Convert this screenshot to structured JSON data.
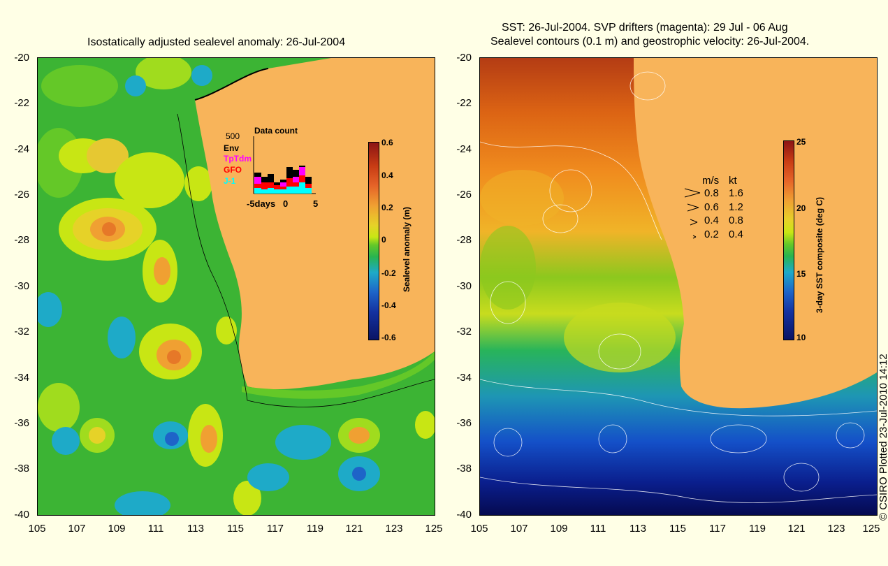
{
  "left_panel": {
    "title": "Isostatically adjusted sealevel anomaly: 26-Jul-2004",
    "y_ticks": [
      "-20",
      "-22",
      "-24",
      "-26",
      "-28",
      "-30",
      "-32",
      "-34",
      "-36",
      "-38",
      "-40"
    ],
    "x_ticks": [
      "105",
      "107",
      "109",
      "111",
      "113",
      "115",
      "117",
      "119",
      "121",
      "123",
      "125"
    ],
    "colorbar": {
      "title": "Sealevel anomaly (m)",
      "labels": [
        "0.6",
        "0.4",
        "0.2",
        "0",
        "-0.2",
        "-0.4",
        "-0.6"
      ]
    },
    "data_count": {
      "title": "Data count",
      "max_label": "500",
      "legend": [
        {
          "label": "Env",
          "color": "#000000"
        },
        {
          "label": "TpTdm",
          "color": "#ff00ff"
        },
        {
          "label": "GFO",
          "color": "#ff0000"
        },
        {
          "label": "J-1",
          "color": "#00ffff"
        }
      ],
      "x_labels": [
        "-5days",
        "0",
        "5"
      ]
    }
  },
  "right_panel": {
    "title_line1": "SST: 26-Jul-2004. SVP drifters (magenta): 29 Jul - 06 Aug",
    "title_line2": "Sealevel contours (0.1 m) and geostrophic velocity: 26-Jul-2004.",
    "y_ticks": [
      "-20",
      "-22",
      "-24",
      "-26",
      "-28",
      "-30",
      "-32",
      "-34",
      "-36",
      "-38",
      "-40"
    ],
    "x_ticks": [
      "105",
      "107",
      "109",
      "111",
      "113",
      "115",
      "117",
      "119",
      "121",
      "123",
      "125"
    ],
    "colorbar": {
      "title": "3-day SST composite (deg C)",
      "labels": [
        "25",
        "20",
        "15",
        "10"
      ]
    },
    "velocity_legend": {
      "header_ms": "m/s",
      "header_kt": "kt",
      "rows": [
        {
          "ms": "0.8",
          "kt": "1.6"
        },
        {
          "ms": "0.6",
          "kt": "1.2"
        },
        {
          "ms": "0.4",
          "kt": "0.8"
        },
        {
          "ms": "0.2",
          "kt": "0.4"
        }
      ]
    }
  },
  "copyright": "© CSIRO Plotted 23-Jul-2010 14:12",
  "colors": {
    "land": "#f8b45a",
    "background": "#ffffe6"
  }
}
